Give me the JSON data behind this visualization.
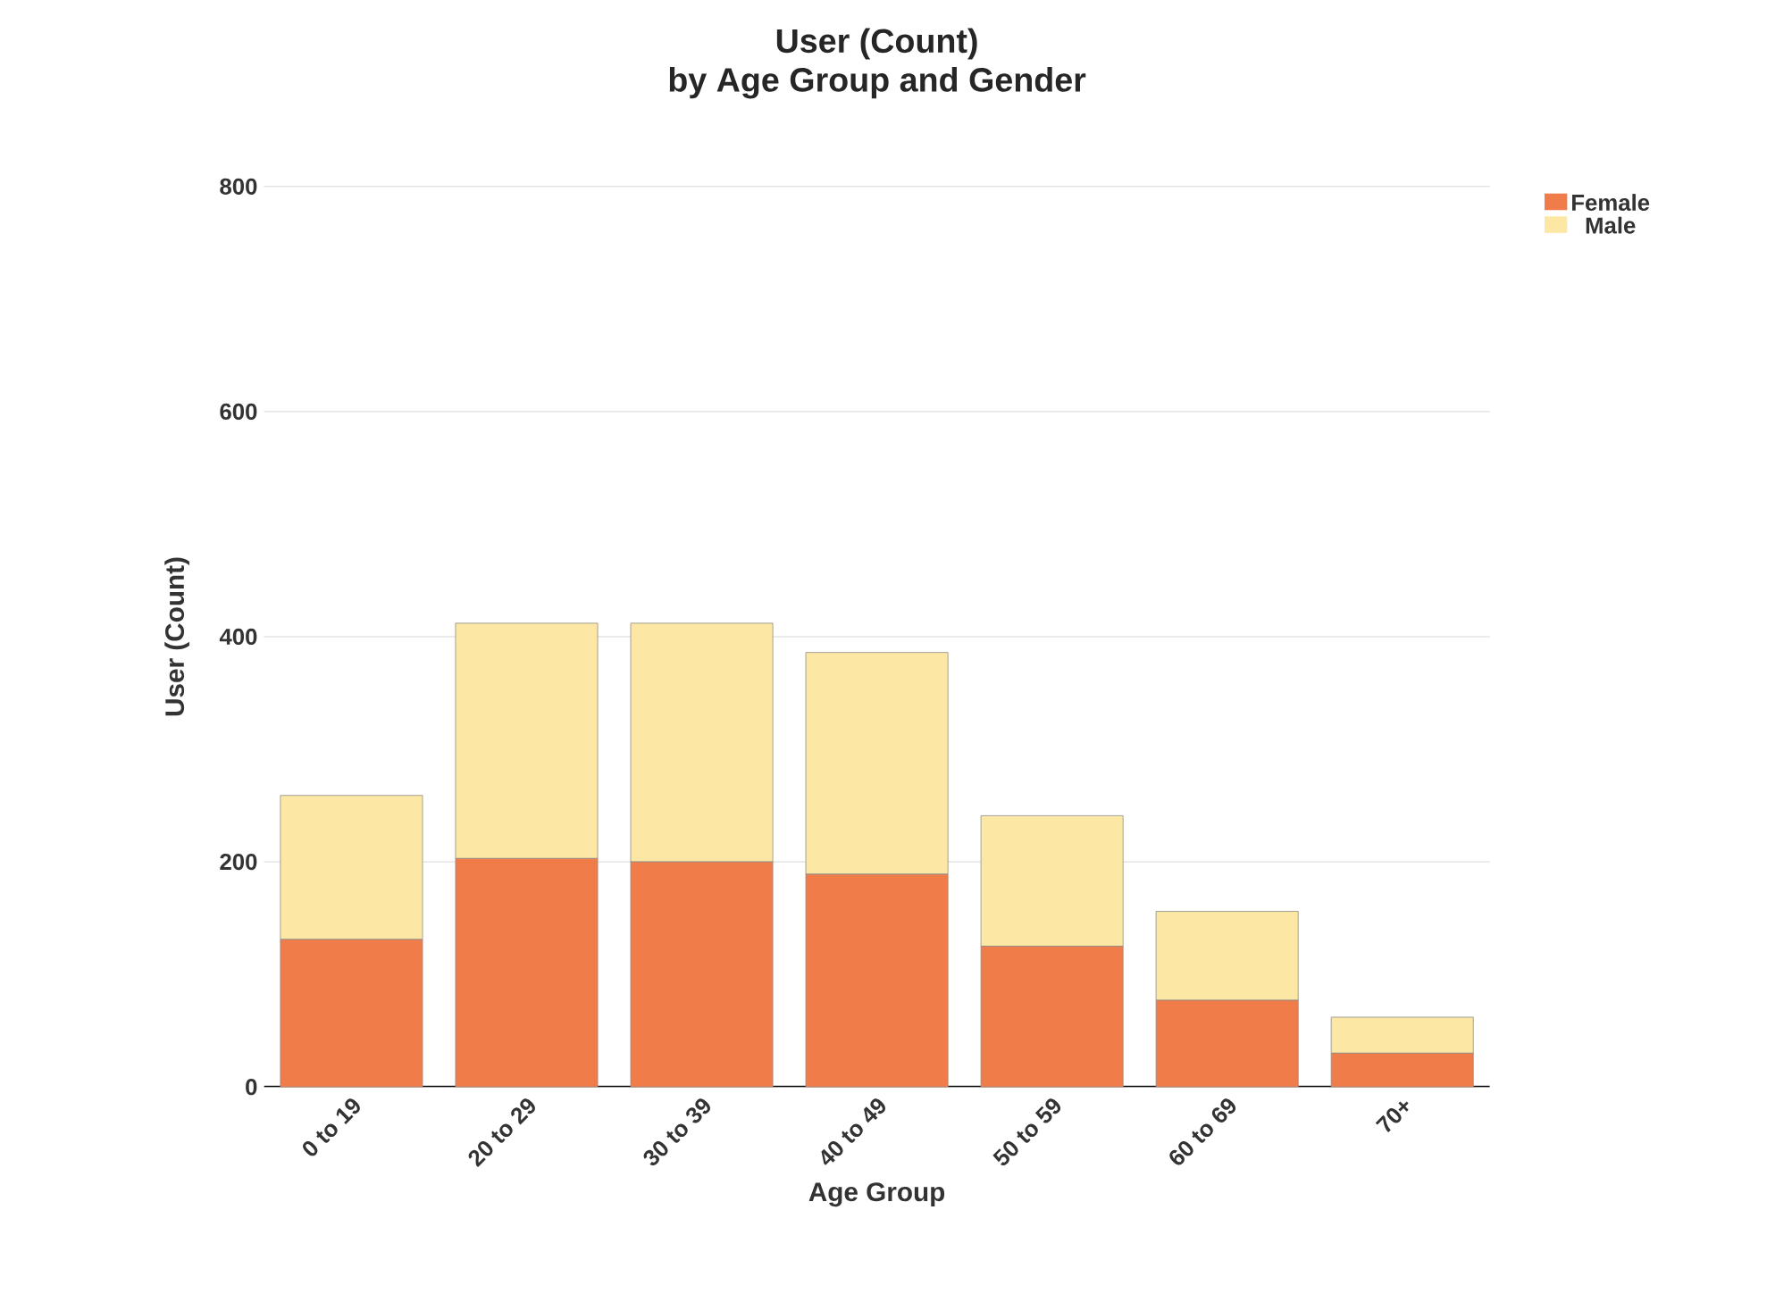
{
  "chart_data": {
    "type": "bar",
    "title": "User (Count)",
    "subtitle": "by Age Group and Gender",
    "xlabel": "Age Group",
    "ylabel": "User (Count)",
    "categories": [
      "0 to 19",
      "20 to 29",
      "30 to 39",
      "40 to 49",
      "50 to 59",
      "60 to 69",
      "70+"
    ],
    "series": [
      {
        "name": "Female",
        "color": "#f07c4a",
        "values": [
          131,
          203,
          200,
          189,
          125,
          77,
          30
        ]
      },
      {
        "name": "Male",
        "color": "#fce8a4",
        "values": [
          128,
          209,
          212,
          197,
          116,
          79,
          32
        ]
      }
    ],
    "stacked": true,
    "ylim": [
      0,
      800
    ],
    "yticks": [
      0,
      200,
      400,
      600,
      800
    ],
    "grid": "y",
    "legend": "top right"
  }
}
